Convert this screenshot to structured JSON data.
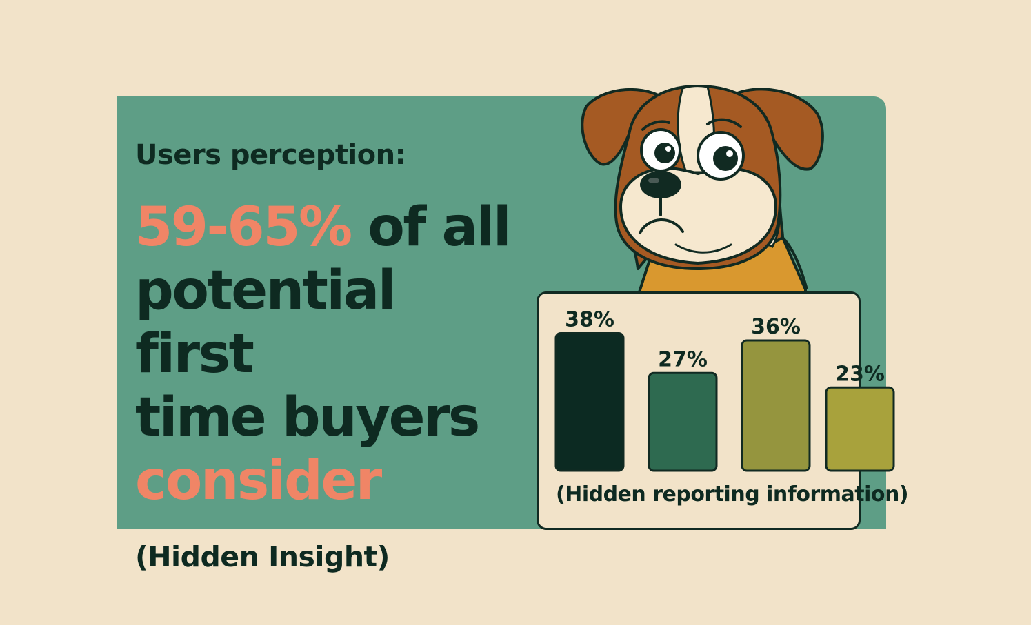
{
  "headline": {
    "subtitle": "Users perception:",
    "highlight": "59-65%",
    "rest_line1": " of all",
    "line2": "potential first",
    "line3": "time buyers",
    "line4": "consider",
    "note": "(Hidden Insight)"
  },
  "colors": {
    "background": "#f2e3c9",
    "panel": "#5e9e86",
    "text": "#0e2a21",
    "accent": "#f08566"
  },
  "chart_data": {
    "type": "bar",
    "categories": [
      "",
      "",
      "",
      ""
    ],
    "values": [
      38,
      27,
      36,
      23
    ],
    "value_labels": [
      "38%",
      "27%",
      "36%",
      "23%"
    ],
    "bar_colors": [
      "#0c2a22",
      "#2e6a50",
      "#95953e",
      "#a8a23c"
    ],
    "ylim": [
      0,
      40
    ],
    "caption": "(Hidden reporting information)",
    "grid": false
  },
  "illustration": {
    "icon": "worried-dog-icon"
  }
}
